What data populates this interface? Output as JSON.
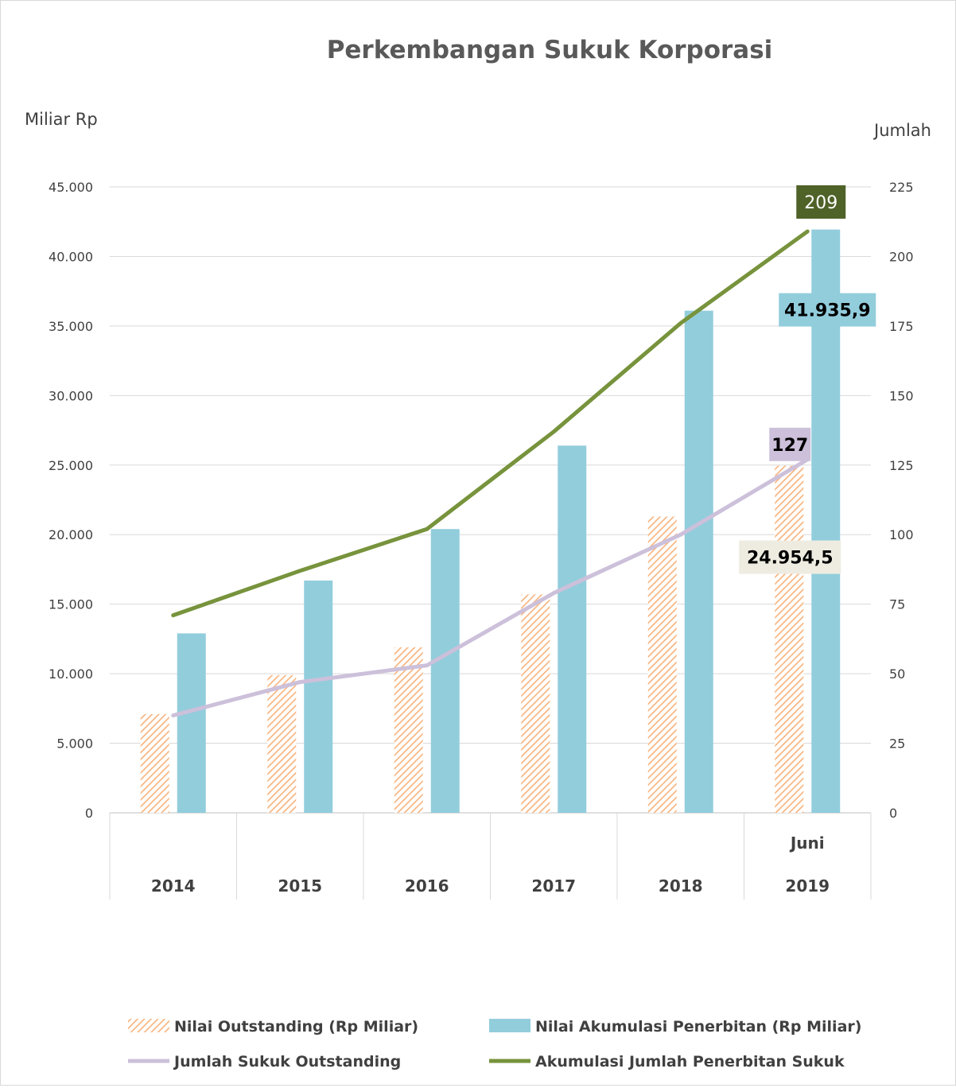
{
  "chart_data": {
    "type": "bar",
    "title": "Perkembangan Sukuk Korporasi",
    "ylabel": "Miliar Rp",
    "y2label": "Jumlah",
    "ylim": [
      0,
      45000
    ],
    "y2lim": [
      0,
      225
    ],
    "yticks": [
      "0",
      "5.000",
      "10.000",
      "15.000",
      "20.000",
      "25.000",
      "30.000",
      "35.000",
      "40.000",
      "45.000"
    ],
    "y2ticks": [
      "0",
      "25",
      "50",
      "75",
      "100",
      "125",
      "150",
      "175",
      "200",
      "225"
    ],
    "categories": [
      {
        "top": "",
        "bottom": "2014"
      },
      {
        "top": "",
        "bottom": "2015"
      },
      {
        "top": "",
        "bottom": "2016"
      },
      {
        "top": "",
        "bottom": "2017"
      },
      {
        "top": "",
        "bottom": "2018"
      },
      {
        "top": "Juni",
        "bottom": "2019"
      }
    ],
    "grid": true,
    "legend_position": "bottom",
    "series": [
      {
        "name": "Nilai Outstanding (Rp Miliar)",
        "type": "bar",
        "axis": "left",
        "pattern": "hatched",
        "color": "#F7B580",
        "values": [
          7100,
          9900,
          11900,
          15700,
          21300,
          24954.5
        ]
      },
      {
        "name": "Nilai Akumulasi Penerbitan (Rp Miliar)",
        "type": "bar",
        "axis": "left",
        "color": "#92CDDC",
        "values": [
          12900,
          16700,
          20400,
          26400,
          36100,
          41935.9
        ]
      },
      {
        "name": "Jumlah Sukuk Outstanding",
        "type": "line",
        "axis": "right",
        "color": "#CCC0DA",
        "values": [
          35,
          47,
          53,
          79,
          100,
          127
        ]
      },
      {
        "name": "Akumulasi Jumlah Penerbitan Sukuk",
        "type": "line",
        "axis": "right",
        "color": "#77933C",
        "values": [
          71,
          87,
          102,
          137,
          176,
          209
        ]
      }
    ],
    "annotations": [
      {
        "text": "209",
        "series": 3,
        "index": 5,
        "bg": "#4F6228",
        "fg": "#ffffff"
      },
      {
        "text": "41.935,9",
        "series": 1,
        "index": 5,
        "bg": "#92CDDC",
        "fg": "#000000"
      },
      {
        "text": "127",
        "series": 2,
        "index": 5,
        "bg": "#CCC0DA",
        "fg": "#000000"
      },
      {
        "text": "24.954,5",
        "series": 0,
        "index": 5,
        "bg": "#EEECE1",
        "fg": "#000000"
      }
    ]
  }
}
